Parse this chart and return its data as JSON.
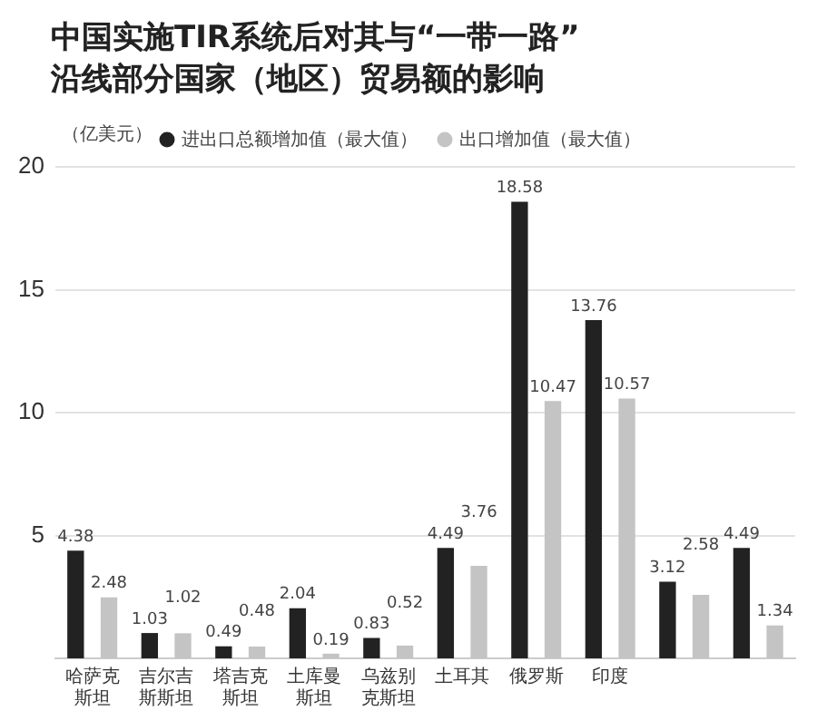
{
  "chart_data": {
    "type": "bar",
    "title": "中国实施TIR系统后对其与“一带一路”\n沿线部分国家（地区）贸易额的影响",
    "ylabel": "（亿美元）",
    "categories": [
      "哈萨克斯坦",
      "吉尔吉斯斯坦",
      "塔吉克斯坦",
      "土库曼斯坦",
      "乌兹别克斯坦",
      "土耳其",
      "俄罗斯",
      "印度",
      null,
      null
    ],
    "series": [
      {
        "name": "进出口总额增加值（最大值）",
        "color": "#222222",
        "values": [
          4.38,
          1.03,
          0.49,
          2.04,
          0.83,
          4.49,
          18.58,
          13.76,
          3.12,
          4.49
        ]
      },
      {
        "name": "出口增加值（最大值）",
        "color": "#c4c4c4",
        "values": [
          2.48,
          1.02,
          0.48,
          0.19,
          0.52,
          3.76,
          10.47,
          10.57,
          2.58,
          1.34
        ]
      }
    ],
    "ylim": [
      0,
      20
    ],
    "yticks": [
      5,
      10,
      15,
      20
    ],
    "grid": "y",
    "legend": "top",
    "data_labels": true
  }
}
